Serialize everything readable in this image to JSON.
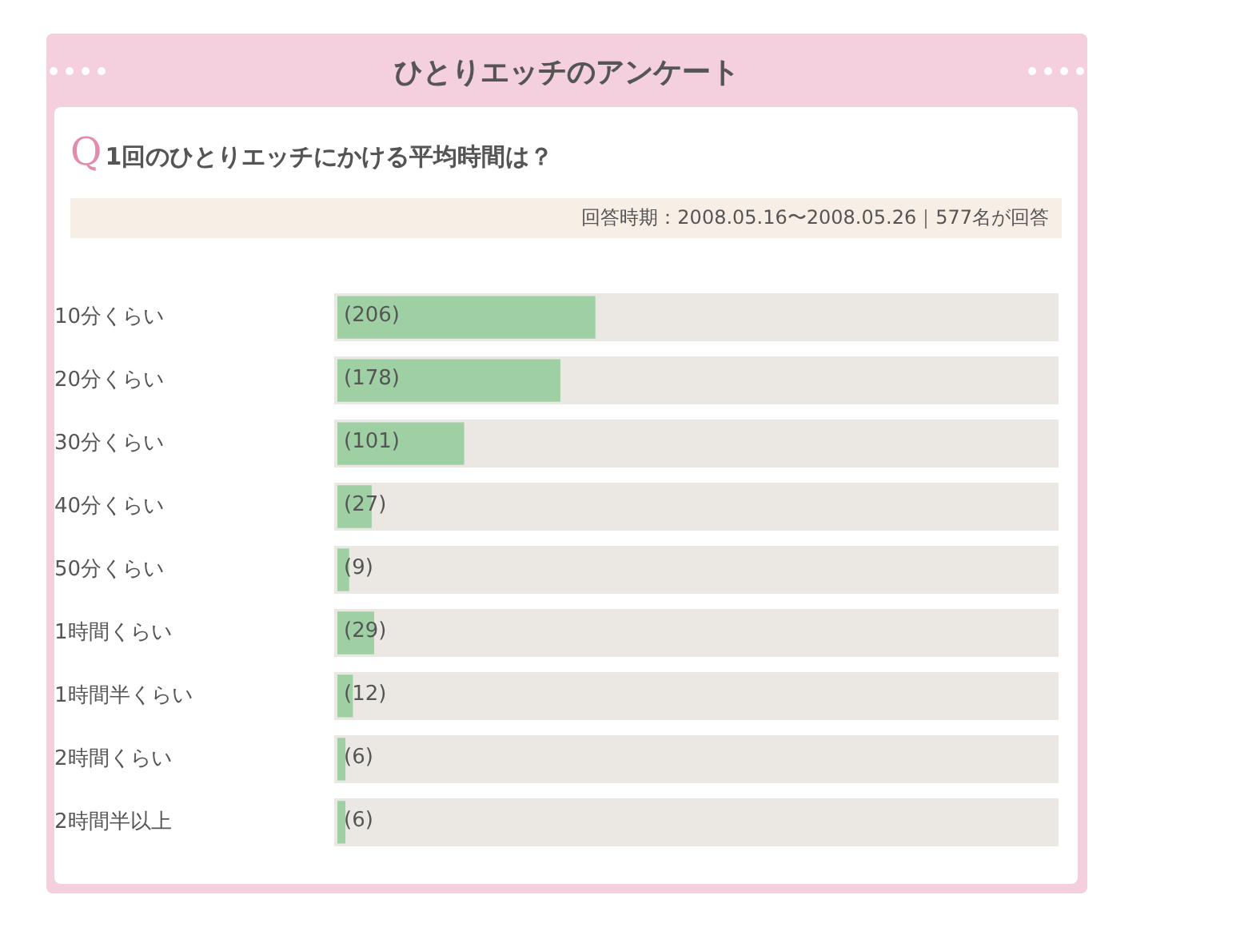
{
  "chart_data": {
    "type": "bar",
    "orientation": "horizontal",
    "title": "ひとりエッチのアンケート",
    "subtitle": "1回のひとりエッチにかける平均時間は？",
    "annotations": [
      "Q",
      "回答時期：2008.05.16〜2008.05.26｜577名が回答"
    ],
    "categories": [
      "10分くらい",
      "20分くらい",
      "30分くらい",
      "40分くらい",
      "50分くらい",
      "1時間くらい",
      "1時間半くらい",
      "2時間くらい",
      "2時間半以上"
    ],
    "values": [
      206,
      178,
      101,
      27,
      9,
      29,
      12,
      6,
      6
    ],
    "value_labels": [
      "(206)",
      "(178)",
      "(101)",
      "(27)",
      "(9)",
      "(29)",
      "(12)",
      "(6)",
      "(6)"
    ],
    "color": "#9fd0a3",
    "xlim": [
      0,
      577
    ],
    "tick_labels": "y",
    "grid": false,
    "legend": false
  }
}
